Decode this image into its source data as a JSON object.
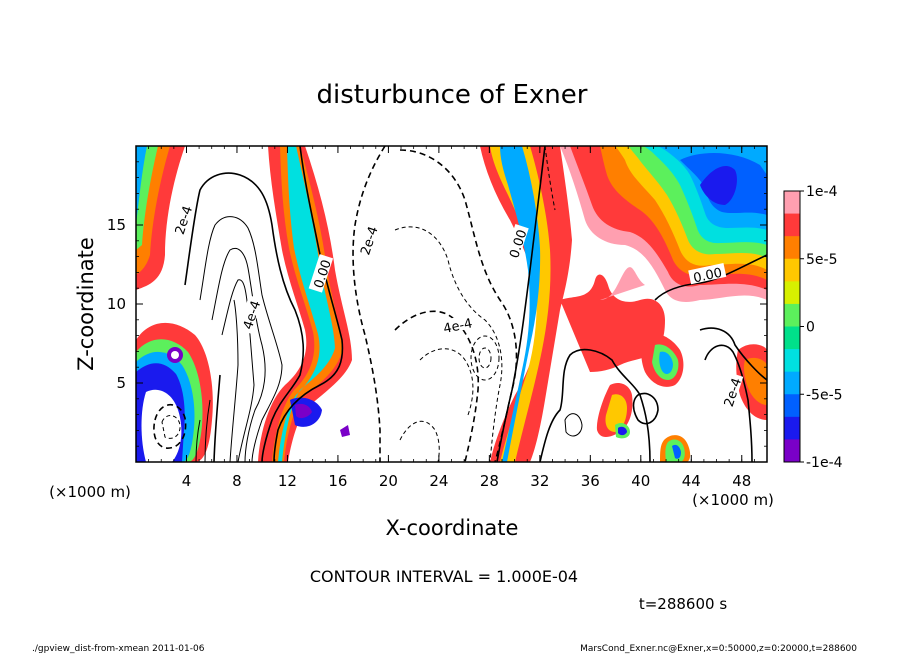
{
  "chart_data": {
    "type": "heatmap",
    "title": "disturbunce of Exner",
    "xlabel": "X-coordinate",
    "ylabel": "Z-coordinate",
    "x_unit_left": "(×1000 m)",
    "x_unit_right": "(×1000 m)",
    "xlim": [
      0,
      50
    ],
    "ylim": [
      0,
      20
    ],
    "x_ticks": [
      "4",
      "8",
      "12",
      "16",
      "20",
      "24",
      "28",
      "32",
      "36",
      "40",
      "44",
      "48"
    ],
    "y_ticks": [
      "5",
      "10",
      "15"
    ],
    "colorbar": {
      "range": [
        -0.0001,
        0.0001
      ],
      "tick_labels": [
        "1e-4",
        "5e-5",
        "0",
        "-5e-5",
        "-1e-4"
      ],
      "colors": [
        "#ff9fb0",
        "#ff3a3a",
        "#ff7f00",
        "#ffc800",
        "#d7f000",
        "#5cf05c",
        "#00e08a",
        "#00e0e0",
        "#00aaff",
        "#0060ff",
        "#1a1aee",
        "#7a00c8"
      ]
    },
    "contour_labels": [
      {
        "text": "2e-4",
        "x": 3.8,
        "z": 15.3
      },
      {
        "text": "4e-4",
        "x": 9.2,
        "z": 9.3
      },
      {
        "text": "0.00",
        "x": 14.8,
        "z": 11.9
      },
      {
        "text": "2e-4",
        "x": 18.5,
        "z": 14.0
      },
      {
        "text": "4e-4",
        "x": 25.5,
        "z": 8.6
      },
      {
        "text": "0.00",
        "x": 30.3,
        "z": 13.8
      },
      {
        "text": "0.00",
        "x": 45.3,
        "z": 11.8
      },
      {
        "text": "2e-4",
        "x": 47.3,
        "z": 4.4
      }
    ],
    "contour_interval_text": "CONTOUR INTERVAL = 1.000E-04",
    "time_text": "t=288600 s"
  },
  "footer": {
    "left": "./gpview_dist-from-xmean  2011-01-06",
    "right": "MarsCond_Exner.nc@Exner,x=0:50000,z=0:20000,t=288600"
  }
}
